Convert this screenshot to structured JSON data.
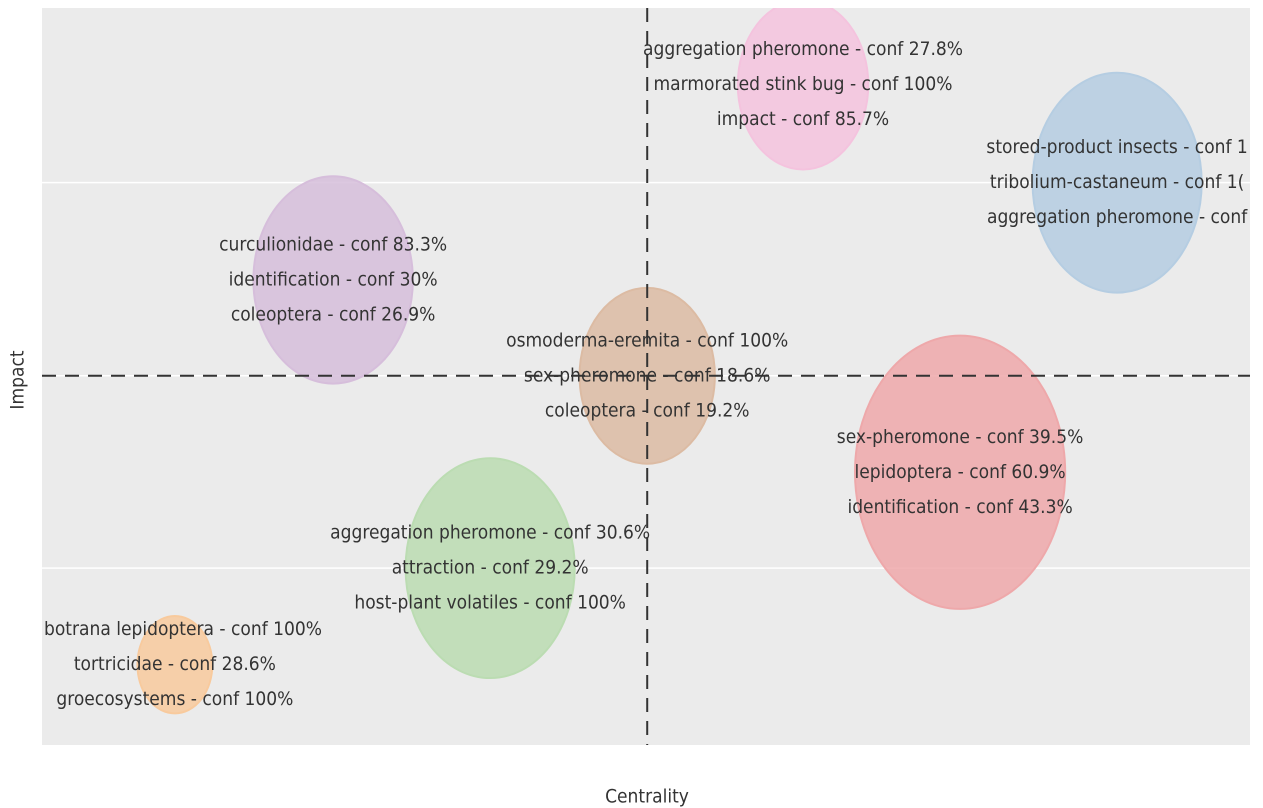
{
  "chart_data": {
    "type": "bubble",
    "xlabel": "Centrality",
    "ylabel": "Impact",
    "xlim": [
      0,
      100
    ],
    "ylim": [
      0,
      100
    ],
    "xline": 50.1,
    "yline": 50.1,
    "ygrid": [
      24.0,
      50.1,
      76.3
    ],
    "points": [
      {
        "labels": [
          "aggregation pheromone - conf 27.8%",
          "marmorated stink bug - conf 100%",
          "impact - conf 85.7%"
        ],
        "x": 63.0,
        "y": 89.6,
        "size": 5.4,
        "color": "#f4c3de"
      },
      {
        "labels": [
          "stored-product insects - conf 1",
          "tribolium-castaneum - conf 1(",
          "aggregation pheromone - conf"
        ],
        "x": 89.0,
        "y": 76.3,
        "size": 7.0,
        "color": "#b5cde2"
      },
      {
        "labels": [
          "curculionidae - conf 83.3%",
          "identification - conf 30%",
          "coleoptera - conf 26.9%"
        ],
        "x": 24.1,
        "y": 63.1,
        "size": 6.6,
        "color": "#d6bedb"
      },
      {
        "labels": [
          "osmoderma-eremita - conf 100%",
          "sex-pheromone - conf 18.6%",
          "coleoptera - conf 19.2%"
        ],
        "x": 50.1,
        "y": 50.1,
        "size": 5.6,
        "color": "#dcbba3"
      },
      {
        "labels": [
          "sex-pheromone - conf 39.5%",
          "lepidoptera - conf 60.9%",
          "identification - conf 43.3%"
        ],
        "x": 76.0,
        "y": 37.0,
        "size": 8.7,
        "color": "#eea8aa"
      },
      {
        "labels": [
          "aggregation pheromone - conf 30.6%",
          "attraction - conf 29.2%",
          "host-plant volatiles - conf 100%"
        ],
        "x": 37.1,
        "y": 24.0,
        "size": 7.0,
        "color": "#bbdcb2"
      },
      {
        "labels": [
          "botrana lepidoptera - conf 100%",
          "tortricidae - conf 28.6%",
          "groecosystems - conf 100%"
        ],
        "x": 11.0,
        "y": 10.9,
        "size": 3.1,
        "color": "#f8ca9d"
      }
    ]
  }
}
